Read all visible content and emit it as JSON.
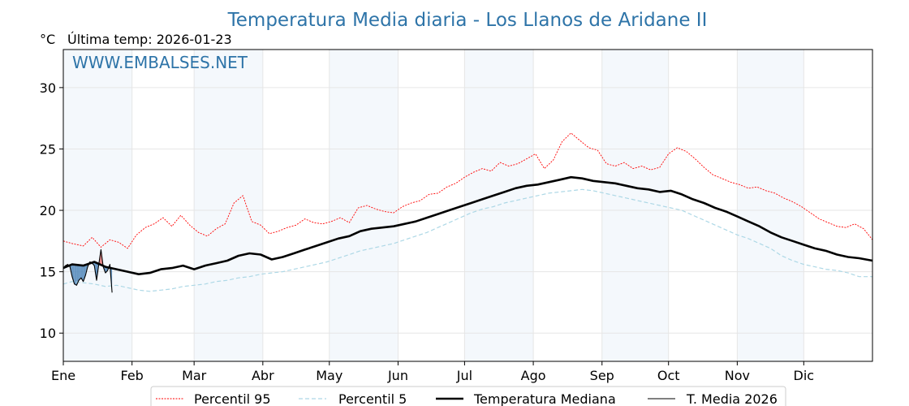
{
  "chart_data": {
    "type": "line",
    "title": "Temperatura Media diaria - Los Llanos de Aridane II",
    "unit_label": "°C",
    "subtitle": "Última temp: 2026-01-23",
    "watermark": "WWW.EMBALSES.NET",
    "xlabel": "",
    "ylabel": "",
    "ylim": [
      7.7,
      33.1
    ],
    "xlim": [
      1,
      366
    ],
    "yticks": [
      10,
      15,
      20,
      25,
      30
    ],
    "grid": true,
    "legend_position": "bottom-center",
    "month_labels": [
      "Ene",
      "Feb",
      "Mar",
      "Abr",
      "May",
      "Jun",
      "Jul",
      "Ago",
      "Sep",
      "Oct",
      "Nov",
      "Dic"
    ],
    "month_start_days": [
      1,
      32,
      60,
      91,
      121,
      152,
      182,
      213,
      244,
      274,
      305,
      335
    ],
    "shaded_months": [
      "Ene",
      "Mar",
      "May",
      "Jul",
      "Sep",
      "Nov"
    ],
    "colors": {
      "p95": "#ff0000",
      "p5": "#add8e6",
      "median": "#000000",
      "current": "#000000",
      "fill_below": "#4f86b8",
      "fill_above": "#e07070",
      "shade": "#f4f8fc",
      "title": "#2e74a8"
    },
    "series": [
      {
        "key": "p95",
        "name": "Percentil 95",
        "style": "dotted",
        "points": [
          [
            1,
            17.5
          ],
          [
            5,
            17.3
          ],
          [
            10,
            17.1
          ],
          [
            14,
            17.8
          ],
          [
            18,
            17.0
          ],
          [
            22,
            17.6
          ],
          [
            26,
            17.4
          ],
          [
            30,
            16.9
          ],
          [
            34,
            18.0
          ],
          [
            38,
            18.6
          ],
          [
            42,
            18.9
          ],
          [
            46,
            19.4
          ],
          [
            50,
            18.7
          ],
          [
            54,
            19.6
          ],
          [
            58,
            18.8
          ],
          [
            62,
            18.2
          ],
          [
            66,
            17.9
          ],
          [
            70,
            18.5
          ],
          [
            74,
            18.9
          ],
          [
            78,
            20.6
          ],
          [
            82,
            21.2
          ],
          [
            86,
            19.1
          ],
          [
            90,
            18.8
          ],
          [
            94,
            18.1
          ],
          [
            98,
            18.3
          ],
          [
            102,
            18.6
          ],
          [
            106,
            18.8
          ],
          [
            110,
            19.3
          ],
          [
            114,
            19.0
          ],
          [
            118,
            18.9
          ],
          [
            122,
            19.1
          ],
          [
            126,
            19.4
          ],
          [
            130,
            19.0
          ],
          [
            134,
            20.2
          ],
          [
            138,
            20.4
          ],
          [
            142,
            20.1
          ],
          [
            146,
            19.9
          ],
          [
            150,
            19.8
          ],
          [
            154,
            20.3
          ],
          [
            158,
            20.6
          ],
          [
            162,
            20.8
          ],
          [
            166,
            21.3
          ],
          [
            170,
            21.4
          ],
          [
            174,
            21.9
          ],
          [
            178,
            22.2
          ],
          [
            182,
            22.7
          ],
          [
            186,
            23.1
          ],
          [
            190,
            23.4
          ],
          [
            194,
            23.2
          ],
          [
            198,
            23.9
          ],
          [
            202,
            23.6
          ],
          [
            206,
            23.8
          ],
          [
            210,
            24.2
          ],
          [
            214,
            24.6
          ],
          [
            218,
            23.4
          ],
          [
            222,
            24.1
          ],
          [
            226,
            25.6
          ],
          [
            230,
            26.3
          ],
          [
            234,
            25.7
          ],
          [
            238,
            25.1
          ],
          [
            242,
            24.9
          ],
          [
            246,
            23.8
          ],
          [
            250,
            23.6
          ],
          [
            254,
            23.9
          ],
          [
            258,
            23.4
          ],
          [
            262,
            23.6
          ],
          [
            266,
            23.3
          ],
          [
            270,
            23.5
          ],
          [
            274,
            24.6
          ],
          [
            278,
            25.1
          ],
          [
            282,
            24.8
          ],
          [
            286,
            24.2
          ],
          [
            290,
            23.5
          ],
          [
            294,
            22.9
          ],
          [
            298,
            22.6
          ],
          [
            302,
            22.3
          ],
          [
            306,
            22.1
          ],
          [
            310,
            21.8
          ],
          [
            314,
            21.9
          ],
          [
            318,
            21.6
          ],
          [
            322,
            21.4
          ],
          [
            326,
            21.0
          ],
          [
            330,
            20.7
          ],
          [
            334,
            20.3
          ],
          [
            338,
            19.8
          ],
          [
            342,
            19.3
          ],
          [
            346,
            19.0
          ],
          [
            350,
            18.7
          ],
          [
            354,
            18.6
          ],
          [
            358,
            18.9
          ],
          [
            362,
            18.5
          ],
          [
            366,
            17.6
          ]
        ]
      },
      {
        "key": "p5",
        "name": "Percentil 5",
        "style": "dashed",
        "points": [
          [
            1,
            14.0
          ],
          [
            5,
            14.2
          ],
          [
            10,
            14.1
          ],
          [
            15,
            14.0
          ],
          [
            20,
            13.8
          ],
          [
            25,
            13.9
          ],
          [
            30,
            13.7
          ],
          [
            35,
            13.5
          ],
          [
            40,
            13.4
          ],
          [
            45,
            13.5
          ],
          [
            50,
            13.6
          ],
          [
            55,
            13.8
          ],
          [
            60,
            13.9
          ],
          [
            65,
            14.0
          ],
          [
            70,
            14.2
          ],
          [
            75,
            14.3
          ],
          [
            80,
            14.5
          ],
          [
            85,
            14.6
          ],
          [
            90,
            14.8
          ],
          [
            95,
            14.9
          ],
          [
            100,
            15.0
          ],
          [
            105,
            15.2
          ],
          [
            110,
            15.4
          ],
          [
            115,
            15.6
          ],
          [
            120,
            15.8
          ],
          [
            125,
            16.1
          ],
          [
            130,
            16.4
          ],
          [
            135,
            16.7
          ],
          [
            140,
            16.9
          ],
          [
            145,
            17.1
          ],
          [
            150,
            17.3
          ],
          [
            155,
            17.6
          ],
          [
            160,
            17.9
          ],
          [
            165,
            18.2
          ],
          [
            170,
            18.6
          ],
          [
            175,
            19.0
          ],
          [
            180,
            19.4
          ],
          [
            185,
            19.8
          ],
          [
            190,
            20.1
          ],
          [
            195,
            20.3
          ],
          [
            200,
            20.6
          ],
          [
            205,
            20.8
          ],
          [
            210,
            21.0
          ],
          [
            215,
            21.2
          ],
          [
            220,
            21.4
          ],
          [
            225,
            21.5
          ],
          [
            230,
            21.6
          ],
          [
            235,
            21.7
          ],
          [
            240,
            21.6
          ],
          [
            245,
            21.4
          ],
          [
            250,
            21.2
          ],
          [
            255,
            21.0
          ],
          [
            260,
            20.8
          ],
          [
            265,
            20.6
          ],
          [
            270,
            20.4
          ],
          [
            275,
            20.2
          ],
          [
            280,
            20.0
          ],
          [
            285,
            19.6
          ],
          [
            290,
            19.2
          ],
          [
            295,
            18.8
          ],
          [
            300,
            18.4
          ],
          [
            305,
            18.0
          ],
          [
            310,
            17.7
          ],
          [
            315,
            17.3
          ],
          [
            320,
            16.9
          ],
          [
            325,
            16.3
          ],
          [
            330,
            15.9
          ],
          [
            335,
            15.6
          ],
          [
            340,
            15.4
          ],
          [
            345,
            15.2
          ],
          [
            350,
            15.1
          ],
          [
            355,
            14.9
          ],
          [
            360,
            14.6
          ],
          [
            366,
            14.6
          ]
        ]
      },
      {
        "key": "median",
        "name": "Temperatura Mediana",
        "style": "solid-bold",
        "points": [
          [
            1,
            15.3
          ],
          [
            5,
            15.6
          ],
          [
            10,
            15.5
          ],
          [
            15,
            15.8
          ],
          [
            20,
            15.4
          ],
          [
            25,
            15.2
          ],
          [
            30,
            15.0
          ],
          [
            35,
            14.8
          ],
          [
            40,
            14.9
          ],
          [
            45,
            15.2
          ],
          [
            50,
            15.3
          ],
          [
            55,
            15.5
          ],
          [
            60,
            15.2
          ],
          [
            65,
            15.5
          ],
          [
            70,
            15.7
          ],
          [
            75,
            15.9
          ],
          [
            80,
            16.3
          ],
          [
            85,
            16.5
          ],
          [
            90,
            16.4
          ],
          [
            95,
            16.0
          ],
          [
            100,
            16.2
          ],
          [
            105,
            16.5
          ],
          [
            110,
            16.8
          ],
          [
            115,
            17.1
          ],
          [
            120,
            17.4
          ],
          [
            125,
            17.7
          ],
          [
            130,
            17.9
          ],
          [
            135,
            18.3
          ],
          [
            140,
            18.5
          ],
          [
            145,
            18.6
          ],
          [
            150,
            18.7
          ],
          [
            155,
            18.9
          ],
          [
            160,
            19.1
          ],
          [
            165,
            19.4
          ],
          [
            170,
            19.7
          ],
          [
            175,
            20.0
          ],
          [
            180,
            20.3
          ],
          [
            185,
            20.6
          ],
          [
            190,
            20.9
          ],
          [
            195,
            21.2
          ],
          [
            200,
            21.5
          ],
          [
            205,
            21.8
          ],
          [
            210,
            22.0
          ],
          [
            215,
            22.1
          ],
          [
            220,
            22.3
          ],
          [
            225,
            22.5
          ],
          [
            230,
            22.7
          ],
          [
            235,
            22.6
          ],
          [
            240,
            22.4
          ],
          [
            245,
            22.3
          ],
          [
            250,
            22.2
          ],
          [
            255,
            22.0
          ],
          [
            260,
            21.8
          ],
          [
            265,
            21.7
          ],
          [
            270,
            21.5
          ],
          [
            275,
            21.6
          ],
          [
            280,
            21.3
          ],
          [
            285,
            20.9
          ],
          [
            290,
            20.6
          ],
          [
            295,
            20.2
          ],
          [
            300,
            19.9
          ],
          [
            305,
            19.5
          ],
          [
            310,
            19.1
          ],
          [
            315,
            18.7
          ],
          [
            320,
            18.2
          ],
          [
            325,
            17.8
          ],
          [
            330,
            17.5
          ],
          [
            335,
            17.2
          ],
          [
            340,
            16.9
          ],
          [
            345,
            16.7
          ],
          [
            350,
            16.4
          ],
          [
            355,
            16.2
          ],
          [
            360,
            16.1
          ],
          [
            366,
            15.9
          ]
        ]
      },
      {
        "key": "current",
        "name": "T. Media 2026",
        "style": "solid-thin",
        "points": [
          [
            1,
            15.3
          ],
          [
            2,
            15.5
          ],
          [
            3,
            15.6
          ],
          [
            4,
            15.4
          ],
          [
            5,
            14.6
          ],
          [
            6,
            14.0
          ],
          [
            7,
            13.9
          ],
          [
            8,
            14.3
          ],
          [
            9,
            14.5
          ],
          [
            10,
            14.2
          ],
          [
            11,
            14.7
          ],
          [
            12,
            15.4
          ],
          [
            13,
            15.8
          ],
          [
            14,
            15.7
          ],
          [
            15,
            15.5
          ],
          [
            16,
            14.3
          ],
          [
            17,
            15.6
          ],
          [
            18,
            16.8
          ],
          [
            19,
            15.4
          ],
          [
            20,
            14.9
          ],
          [
            21,
            15.1
          ],
          [
            22,
            15.6
          ],
          [
            23,
            13.3
          ]
        ]
      }
    ]
  }
}
